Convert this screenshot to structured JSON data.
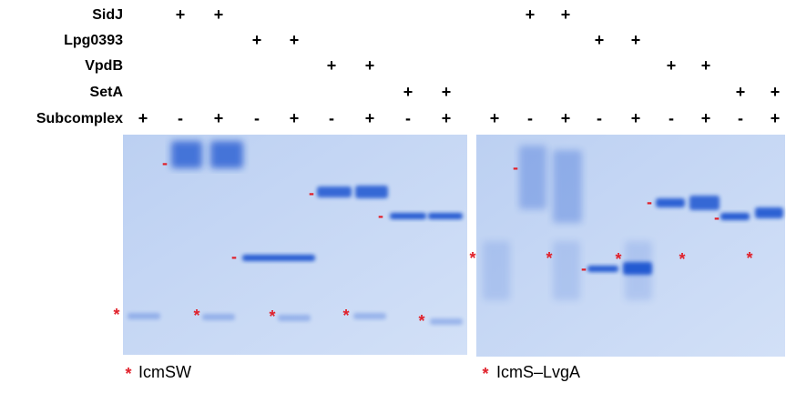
{
  "rows": [
    {
      "label": "SidJ",
      "left": [
        null,
        "+",
        "+",
        null,
        null,
        null,
        null,
        null,
        null
      ],
      "right": [
        null,
        "+",
        "+",
        null,
        null,
        null,
        null,
        null,
        null
      ]
    },
    {
      "label": "Lpg0393",
      "left": [
        null,
        null,
        null,
        "+",
        "+",
        null,
        null,
        null,
        null
      ],
      "right": [
        null,
        null,
        null,
        "+",
        "+",
        null,
        null,
        null,
        null
      ]
    },
    {
      "label": "VpdB",
      "left": [
        null,
        null,
        null,
        null,
        null,
        "+",
        "+",
        null,
        null
      ],
      "right": [
        null,
        null,
        null,
        null,
        null,
        "+",
        "+",
        null,
        null
      ]
    },
    {
      "label": "SetA",
      "left": [
        null,
        null,
        null,
        null,
        null,
        null,
        null,
        "+",
        "+"
      ],
      "right": [
        null,
        null,
        null,
        null,
        null,
        null,
        null,
        "+",
        "+"
      ]
    },
    {
      "label": "Subcomplex",
      "left": [
        "+",
        "-",
        "+",
        "-",
        "+",
        "-",
        "+",
        "-",
        "+"
      ],
      "right": [
        "+",
        "-",
        "+",
        "-",
        "+",
        "-",
        "+",
        "-",
        "+"
      ]
    }
  ],
  "gel_marks": {
    "band": "-",
    "star": "*"
  },
  "legend": {
    "left": {
      "mark": "*",
      "text": "IcmSW"
    },
    "right": {
      "mark": "*",
      "text": "IcmS–LvgA"
    }
  }
}
